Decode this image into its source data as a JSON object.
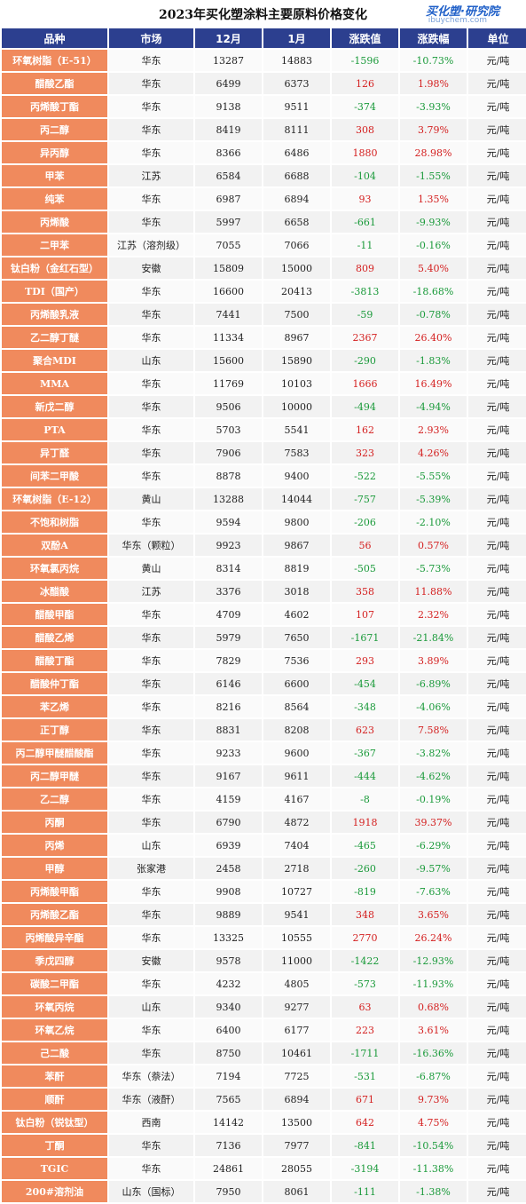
{
  "title": "2023年买化塑涂料主要原料价格变化",
  "logo": {
    "name": "买化塑·研究院",
    "url": "ibuychem.com"
  },
  "colors": {
    "header_bg": "#2c3f8f",
    "name_bg": "#f08a5d",
    "up": "#d42020",
    "down": "#1a9a3a"
  },
  "columns": [
    "品种",
    "市场",
    "12月",
    "1月",
    "涨跌值",
    "涨跌幅",
    "单位"
  ],
  "rows": [
    {
      "name": "环氧树脂（E-51）",
      "market": "华东",
      "dec": "13287",
      "jan": "14883",
      "change": "-1596",
      "pct": "-10.73%",
      "unit": "元/吨"
    },
    {
      "name": "醋酸乙酯",
      "market": "华东",
      "dec": "6499",
      "jan": "6373",
      "change": "126",
      "pct": "1.98%",
      "unit": "元/吨"
    },
    {
      "name": "丙烯酸丁酯",
      "market": "华东",
      "dec": "9138",
      "jan": "9511",
      "change": "-374",
      "pct": "-3.93%",
      "unit": "元/吨"
    },
    {
      "name": "丙二醇",
      "market": "华东",
      "dec": "8419",
      "jan": "8111",
      "change": "308",
      "pct": "3.79%",
      "unit": "元/吨"
    },
    {
      "name": "异丙醇",
      "market": "华东",
      "dec": "8366",
      "jan": "6486",
      "change": "1880",
      "pct": "28.98%",
      "unit": "元/吨"
    },
    {
      "name": "甲苯",
      "market": "江苏",
      "dec": "6584",
      "jan": "6688",
      "change": "-104",
      "pct": "-1.55%",
      "unit": "元/吨"
    },
    {
      "name": "纯苯",
      "market": "华东",
      "dec": "6987",
      "jan": "6894",
      "change": "93",
      "pct": "1.35%",
      "unit": "元/吨"
    },
    {
      "name": "丙烯酸",
      "market": "华东",
      "dec": "5997",
      "jan": "6658",
      "change": "-661",
      "pct": "-9.93%",
      "unit": "元/吨"
    },
    {
      "name": "二甲苯",
      "market": "江苏（溶剂级）",
      "dec": "7055",
      "jan": "7066",
      "change": "-11",
      "pct": "-0.16%",
      "unit": "元/吨"
    },
    {
      "name": "钛白粉（金红石型）",
      "market": "安徽",
      "dec": "15809",
      "jan": "15000",
      "change": "809",
      "pct": "5.40%",
      "unit": "元/吨"
    },
    {
      "name": "TDI（国产）",
      "market": "华东",
      "dec": "16600",
      "jan": "20413",
      "change": "-3813",
      "pct": "-18.68%",
      "unit": "元/吨"
    },
    {
      "name": "丙烯酸乳液",
      "market": "华东",
      "dec": "7441",
      "jan": "7500",
      "change": "-59",
      "pct": "-0.78%",
      "unit": "元/吨"
    },
    {
      "name": "乙二醇丁醚",
      "market": "华东",
      "dec": "11334",
      "jan": "8967",
      "change": "2367",
      "pct": "26.40%",
      "unit": "元/吨"
    },
    {
      "name": "聚合MDI",
      "market": "山东",
      "dec": "15600",
      "jan": "15890",
      "change": "-290",
      "pct": "-1.83%",
      "unit": "元/吨"
    },
    {
      "name": "MMA",
      "market": "华东",
      "dec": "11769",
      "jan": "10103",
      "change": "1666",
      "pct": "16.49%",
      "unit": "元/吨"
    },
    {
      "name": "新戊二醇",
      "market": "华东",
      "dec": "9506",
      "jan": "10000",
      "change": "-494",
      "pct": "-4.94%",
      "unit": "元/吨"
    },
    {
      "name": "PTA",
      "market": "华东",
      "dec": "5703",
      "jan": "5541",
      "change": "162",
      "pct": "2.93%",
      "unit": "元/吨"
    },
    {
      "name": "异丁醛",
      "market": "华东",
      "dec": "7906",
      "jan": "7583",
      "change": "323",
      "pct": "4.26%",
      "unit": "元/吨"
    },
    {
      "name": "间苯二甲酸",
      "market": "华东",
      "dec": "8878",
      "jan": "9400",
      "change": "-522",
      "pct": "-5.55%",
      "unit": "元/吨"
    },
    {
      "name": "环氧树脂（E-12）",
      "market": "黄山",
      "dec": "13288",
      "jan": "14044",
      "change": "-757",
      "pct": "-5.39%",
      "unit": "元/吨"
    },
    {
      "name": "不饱和树脂",
      "market": "华东",
      "dec": "9594",
      "jan": "9800",
      "change": "-206",
      "pct": "-2.10%",
      "unit": "元/吨"
    },
    {
      "name": "双酚A",
      "market": "华东（颗粒）",
      "dec": "9923",
      "jan": "9867",
      "change": "56",
      "pct": "0.57%",
      "unit": "元/吨"
    },
    {
      "name": "环氧氯丙烷",
      "market": "黄山",
      "dec": "8314",
      "jan": "8819",
      "change": "-505",
      "pct": "-5.73%",
      "unit": "元/吨"
    },
    {
      "name": "冰醋酸",
      "market": "江苏",
      "dec": "3376",
      "jan": "3018",
      "change": "358",
      "pct": "11.88%",
      "unit": "元/吨"
    },
    {
      "name": "醋酸甲酯",
      "market": "华东",
      "dec": "4709",
      "jan": "4602",
      "change": "107",
      "pct": "2.32%",
      "unit": "元/吨"
    },
    {
      "name": "醋酸乙烯",
      "market": "华东",
      "dec": "5979",
      "jan": "7650",
      "change": "-1671",
      "pct": "-21.84%",
      "unit": "元/吨"
    },
    {
      "name": "醋酸丁酯",
      "market": "华东",
      "dec": "7829",
      "jan": "7536",
      "change": "293",
      "pct": "3.89%",
      "unit": "元/吨"
    },
    {
      "name": "醋酸仲丁酯",
      "market": "华东",
      "dec": "6146",
      "jan": "6600",
      "change": "-454",
      "pct": "-6.89%",
      "unit": "元/吨"
    },
    {
      "name": "苯乙烯",
      "market": "华东",
      "dec": "8216",
      "jan": "8564",
      "change": "-348",
      "pct": "-4.06%",
      "unit": "元/吨"
    },
    {
      "name": "正丁醇",
      "market": "华东",
      "dec": "8831",
      "jan": "8208",
      "change": "623",
      "pct": "7.58%",
      "unit": "元/吨"
    },
    {
      "name": "丙二醇甲醚醋酸酯",
      "market": "华东",
      "dec": "9233",
      "jan": "9600",
      "change": "-367",
      "pct": "-3.82%",
      "unit": "元/吨"
    },
    {
      "name": "丙二醇甲醚",
      "market": "华东",
      "dec": "9167",
      "jan": "9611",
      "change": "-444",
      "pct": "-4.62%",
      "unit": "元/吨"
    },
    {
      "name": "乙二醇",
      "market": "华东",
      "dec": "4159",
      "jan": "4167",
      "change": "-8",
      "pct": "-0.19%",
      "unit": "元/吨"
    },
    {
      "name": "丙酮",
      "market": "华东",
      "dec": "6790",
      "jan": "4872",
      "change": "1918",
      "pct": "39.37%",
      "unit": "元/吨"
    },
    {
      "name": "丙烯",
      "market": "山东",
      "dec": "6939",
      "jan": "7404",
      "change": "-465",
      "pct": "-6.29%",
      "unit": "元/吨"
    },
    {
      "name": "甲醇",
      "market": "张家港",
      "dec": "2458",
      "jan": "2718",
      "change": "-260",
      "pct": "-9.57%",
      "unit": "元/吨"
    },
    {
      "name": "丙烯酸甲酯",
      "market": "华东",
      "dec": "9908",
      "jan": "10727",
      "change": "-819",
      "pct": "-7.63%",
      "unit": "元/吨"
    },
    {
      "name": "丙烯酸乙酯",
      "market": "华东",
      "dec": "9889",
      "jan": "9541",
      "change": "348",
      "pct": "3.65%",
      "unit": "元/吨"
    },
    {
      "name": "丙烯酸异辛酯",
      "market": "华东",
      "dec": "13325",
      "jan": "10555",
      "change": "2770",
      "pct": "26.24%",
      "unit": "元/吨"
    },
    {
      "name": "季戊四醇",
      "market": "安徽",
      "dec": "9578",
      "jan": "11000",
      "change": "-1422",
      "pct": "-12.93%",
      "unit": "元/吨"
    },
    {
      "name": "碳酸二甲酯",
      "market": "华东",
      "dec": "4232",
      "jan": "4805",
      "change": "-573",
      "pct": "-11.93%",
      "unit": "元/吨"
    },
    {
      "name": "环氧丙烷",
      "market": "山东",
      "dec": "9340",
      "jan": "9277",
      "change": "63",
      "pct": "0.68%",
      "unit": "元/吨"
    },
    {
      "name": "环氧乙烷",
      "market": "华东",
      "dec": "6400",
      "jan": "6177",
      "change": "223",
      "pct": "3.61%",
      "unit": "元/吨"
    },
    {
      "name": "己二酸",
      "market": "华东",
      "dec": "8750",
      "jan": "10461",
      "change": "-1711",
      "pct": "-16.36%",
      "unit": "元/吨"
    },
    {
      "name": "苯酐",
      "market": "华东（萘法）",
      "dec": "7194",
      "jan": "7725",
      "change": "-531",
      "pct": "-6.87%",
      "unit": "元/吨"
    },
    {
      "name": "顺酐",
      "market": "华东（液酐）",
      "dec": "7565",
      "jan": "6894",
      "change": "671",
      "pct": "9.73%",
      "unit": "元/吨"
    },
    {
      "name": "钛白粉（锐钛型）",
      "market": "西南",
      "dec": "14142",
      "jan": "13500",
      "change": "642",
      "pct": "4.75%",
      "unit": "元/吨"
    },
    {
      "name": "丁酮",
      "market": "华东",
      "dec": "7136",
      "jan": "7977",
      "change": "-841",
      "pct": "-10.54%",
      "unit": "元/吨"
    },
    {
      "name": "TGIC",
      "market": "华东",
      "dec": "24861",
      "jan": "28055",
      "change": "-3194",
      "pct": "-11.38%",
      "unit": "元/吨"
    },
    {
      "name": "200#溶剂油",
      "market": "山东（国标）",
      "dec": "7950",
      "jan": "8061",
      "change": "-111",
      "pct": "-1.38%",
      "unit": "元/吨"
    }
  ]
}
